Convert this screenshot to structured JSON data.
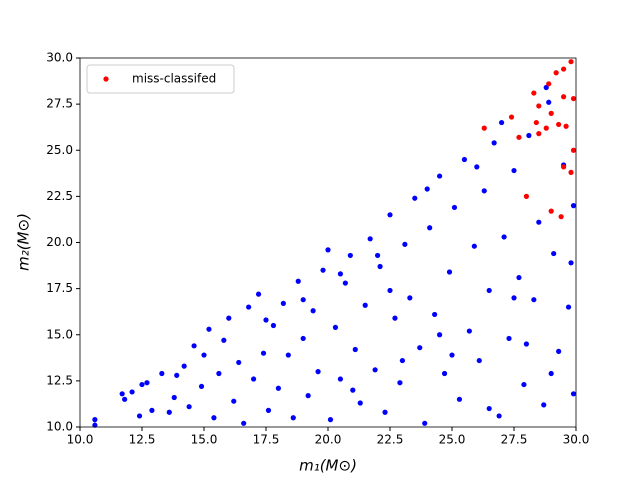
{
  "chart_data": {
    "type": "scatter",
    "x_label": "m₁(M⊙)",
    "y_label": "m₂(M⊙)",
    "xlim": [
      10,
      30
    ],
    "ylim": [
      10,
      30
    ],
    "xticks": [
      {
        "value": 10,
        "label": "10.0"
      },
      {
        "value": 12.5,
        "label": "12.5"
      },
      {
        "value": 15,
        "label": "15.0"
      },
      {
        "value": 17.5,
        "label": "17.5"
      },
      {
        "value": 20,
        "label": "20.0"
      },
      {
        "value": 22.5,
        "label": "22.5"
      },
      {
        "value": 25,
        "label": "25.0"
      },
      {
        "value": 27.5,
        "label": "27.5"
      },
      {
        "value": 30,
        "label": "30.0"
      }
    ],
    "yticks": [
      {
        "value": 10,
        "label": "10.0"
      },
      {
        "value": 12.5,
        "label": "12.5"
      },
      {
        "value": 15,
        "label": "15.0"
      },
      {
        "value": 17.5,
        "label": "17.5"
      },
      {
        "value": 20,
        "label": "20.0"
      },
      {
        "value": 22.5,
        "label": "22.5"
      },
      {
        "value": 25,
        "label": "25.0"
      },
      {
        "value": 27.5,
        "label": "27.5"
      },
      {
        "value": 30,
        "label": "30.0"
      }
    ],
    "grid": false,
    "legend": "upper left",
    "series": [
      {
        "color": "#0000ff",
        "x": [
          10.6,
          10.6,
          11.7,
          11.8,
          12.1,
          12.5,
          12.7,
          12.4,
          12.9,
          13.3,
          13.6,
          13.8,
          13.9,
          14.2,
          14.4,
          14.6,
          14.9,
          15.0,
          15.2,
          15.4,
          15.6,
          15.8,
          16.0,
          16.2,
          16.4,
          16.6,
          16.8,
          17.0,
          17.2,
          17.4,
          17.6,
          17.8,
          18.0,
          18.2,
          18.4,
          18.6,
          18.8,
          19.0,
          19.2,
          19.4,
          19.6,
          19.8,
          20.0,
          20.1,
          20.3,
          20.5,
          20.7,
          20.9,
          21.1,
          21.3,
          21.5,
          21.7,
          21.9,
          22.1,
          22.3,
          22.5,
          22.7,
          22.9,
          23.1,
          23.3,
          23.5,
          23.7,
          23.9,
          24.1,
          24.3,
          24.5,
          24.7,
          24.9,
          25.1,
          25.3,
          25.5,
          25.7,
          25.9,
          26.1,
          26.3,
          26.5,
          26.7,
          26.9,
          27.1,
          27.3,
          27.5,
          27.7,
          27.9,
          28.1,
          28.3,
          28.5,
          28.7,
          28.9,
          29.1,
          29.3,
          29.5,
          29.7,
          29.9,
          29.9,
          29.8,
          27.0,
          28.8,
          26.0,
          24.0,
          22.0,
          20.5,
          19.0,
          17.5,
          25.0,
          23.0,
          21.0,
          26.5,
          28.0,
          27.5,
          29.0,
          24.5,
          22.5
        ],
        "values": [
          10.4,
          10.1,
          11.8,
          11.5,
          11.9,
          12.3,
          12.4,
          10.6,
          10.9,
          12.9,
          10.8,
          11.6,
          12.8,
          13.3,
          11.1,
          14.4,
          12.2,
          13.9,
          15.3,
          10.5,
          12.9,
          14.7,
          15.9,
          11.4,
          13.5,
          10.2,
          16.5,
          12.6,
          17.2,
          14.0,
          10.9,
          15.5,
          12.1,
          16.7,
          13.9,
          10.5,
          17.9,
          14.8,
          11.7,
          16.3,
          13.0,
          18.5,
          19.6,
          10.4,
          15.4,
          12.6,
          17.8,
          19.3,
          14.2,
          11.3,
          16.6,
          20.2,
          13.1,
          18.7,
          10.8,
          21.5,
          15.9,
          12.4,
          19.9,
          17.0,
          22.4,
          14.3,
          10.2,
          20.8,
          16.1,
          23.6,
          12.9,
          18.4,
          21.9,
          11.5,
          24.5,
          15.2,
          19.8,
          13.6,
          22.8,
          17.4,
          25.4,
          10.6,
          20.3,
          14.8,
          23.9,
          18.1,
          12.3,
          25.8,
          16.9,
          21.1,
          11.2,
          27.6,
          19.4,
          14.1,
          24.2,
          16.5,
          22.0,
          11.8,
          18.9,
          26.5,
          28.4,
          24.1,
          22.9,
          19.3,
          18.3,
          16.9,
          15.8,
          13.9,
          13.6,
          12.0,
          11.0,
          14.5,
          17.0,
          12.9,
          15.0,
          17.4
        ]
      },
      {
        "name": "miss-classifed",
        "color": "#ff0000",
        "x": [
          28.3,
          28.9,
          29.2,
          29.5,
          29.8,
          28.5,
          29.0,
          29.5,
          29.9,
          28.4,
          28.8,
          29.3,
          29.6,
          27.4,
          26.3,
          27.7,
          28.5,
          29.9,
          29.5,
          29.8,
          28.0,
          29.0,
          29.4
        ],
        "values": [
          28.1,
          28.6,
          29.2,
          29.4,
          29.8,
          27.4,
          27.0,
          27.9,
          27.8,
          26.5,
          26.2,
          26.4,
          26.3,
          26.8,
          26.2,
          25.7,
          25.9,
          25.0,
          24.1,
          23.8,
          22.5,
          21.7,
          21.4
        ]
      }
    ]
  }
}
